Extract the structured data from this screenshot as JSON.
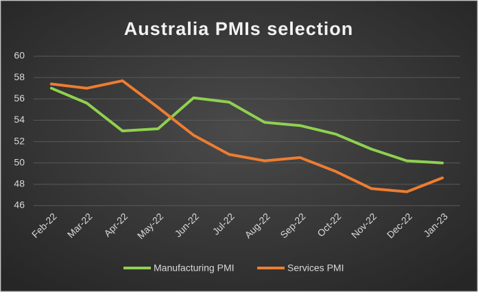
{
  "chart_data": {
    "type": "line",
    "title": "Australia PMIs selection",
    "categories": [
      "Feb-22",
      "Mar-22",
      "Apr-22",
      "May-22",
      "Jun-22",
      "Jul-22",
      "Aug-22",
      "Sep-22",
      "Oct-22",
      "Nov-22",
      "Dec-22",
      "Jan-23"
    ],
    "series": [
      {
        "name": "Manufacturing PMI",
        "color": "#8fd14f",
        "values": [
          57.0,
          55.6,
          53.0,
          53.2,
          56.1,
          55.7,
          53.8,
          53.5,
          52.7,
          51.3,
          50.2,
          50.0
        ]
      },
      {
        "name": "Services PMI",
        "color": "#ed7d31",
        "values": [
          57.4,
          57.0,
          57.7,
          55.2,
          52.6,
          50.8,
          50.2,
          50.5,
          49.2,
          47.6,
          47.3,
          48.6
        ]
      }
    ],
    "ylim": [
      46,
      60
    ],
    "yticks": [
      46,
      48,
      50,
      52,
      54,
      56,
      58,
      60
    ],
    "grid": true,
    "legend": "bottom"
  }
}
